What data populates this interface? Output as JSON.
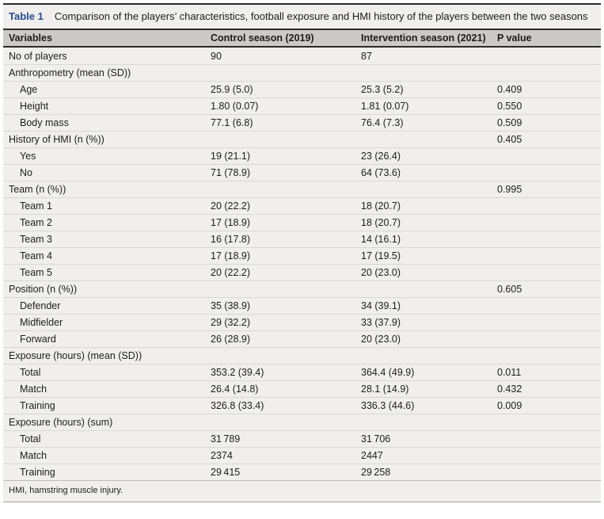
{
  "table": {
    "label": "Table 1",
    "caption": "Comparison of the players’ characteristics, football exposure and HMI history of the players between the two seasons",
    "columns": [
      "Variables",
      "Control season (2019)",
      "Intervention season (2021)",
      "P value"
    ],
    "rows": [
      {
        "label": "No of players",
        "indent": 0,
        "control": "90",
        "intervention": "87",
        "p": ""
      },
      {
        "label": "Anthropometry (mean (SD))",
        "indent": 0,
        "control": "",
        "intervention": "",
        "p": ""
      },
      {
        "label": "Age",
        "indent": 1,
        "control": "25.9 (5.0)",
        "intervention": "25.3 (5.2)",
        "p": "0.409"
      },
      {
        "label": "Height",
        "indent": 1,
        "control": "1.80 (0.07)",
        "intervention": "1.81 (0.07)",
        "p": "0.550"
      },
      {
        "label": "Body mass",
        "indent": 1,
        "control": "77.1 (6.8)",
        "intervention": "76.4 (7.3)",
        "p": "0.509"
      },
      {
        "label": "History of HMI (n (%))",
        "indent": 0,
        "control": "",
        "intervention": "",
        "p": "0.405"
      },
      {
        "label": "Yes",
        "indent": 1,
        "control": "19 (21.1)",
        "intervention": "23 (26.4)",
        "p": ""
      },
      {
        "label": "No",
        "indent": 1,
        "control": "71 (78.9)",
        "intervention": "64 (73.6)",
        "p": ""
      },
      {
        "label": "Team (n (%))",
        "indent": 0,
        "control": "",
        "intervention": "",
        "p": "0.995"
      },
      {
        "label": "Team 1",
        "indent": 1,
        "control": "20 (22.2)",
        "intervention": "18 (20.7)",
        "p": ""
      },
      {
        "label": "Team 2",
        "indent": 1,
        "control": "17 (18.9)",
        "intervention": "18 (20.7)",
        "p": ""
      },
      {
        "label": "Team 3",
        "indent": 1,
        "control": "16 (17.8)",
        "intervention": "14 (16.1)",
        "p": ""
      },
      {
        "label": "Team 4",
        "indent": 1,
        "control": "17 (18.9)",
        "intervention": "17 (19.5)",
        "p": ""
      },
      {
        "label": "Team 5",
        "indent": 1,
        "control": "20 (22.2)",
        "intervention": "20 (23.0)",
        "p": ""
      },
      {
        "label": "Position (n (%))",
        "indent": 0,
        "control": "",
        "intervention": "",
        "p": "0.605"
      },
      {
        "label": "Defender",
        "indent": 1,
        "control": "35 (38.9)",
        "intervention": "34 (39.1)",
        "p": ""
      },
      {
        "label": "Midfielder",
        "indent": 1,
        "control": "29 (32.2)",
        "intervention": "33 (37.9)",
        "p": ""
      },
      {
        "label": "Forward",
        "indent": 1,
        "control": "26 (28.9)",
        "intervention": "20 (23.0)",
        "p": ""
      },
      {
        "label": "Exposure (hours) (mean (SD))",
        "indent": 0,
        "control": "",
        "intervention": "",
        "p": ""
      },
      {
        "label": "Total",
        "indent": 1,
        "control": "353.2 (39.4)",
        "intervention": "364.4 (49.9)",
        "p": "0.011"
      },
      {
        "label": "Match",
        "indent": 1,
        "control": "26.4 (14.8)",
        "intervention": "28.1 (14.9)",
        "p": "0.432"
      },
      {
        "label": "Training",
        "indent": 1,
        "control": "326.8 (33.4)",
        "intervention": "336.3 (44.6)",
        "p": "0.009"
      },
      {
        "label": "Exposure (hours) (sum)",
        "indent": 0,
        "control": "",
        "intervention": "",
        "p": ""
      },
      {
        "label": "Total",
        "indent": 1,
        "control": "31 789",
        "intervention": "31 706",
        "p": ""
      },
      {
        "label": "Match",
        "indent": 1,
        "control": "2374",
        "intervention": "2447",
        "p": ""
      },
      {
        "label": "Training",
        "indent": 1,
        "control": "29 415",
        "intervention": "29 258",
        "p": ""
      }
    ],
    "footnote": "HMI, hamstring muscle injury."
  },
  "colors": {
    "title_blue": "#2a4b8d",
    "header_bg": "#cbcac8",
    "body_bg": "#f1efed",
    "dark_rule": "#2b2b2b",
    "row_separator": "#d9d8d6"
  }
}
